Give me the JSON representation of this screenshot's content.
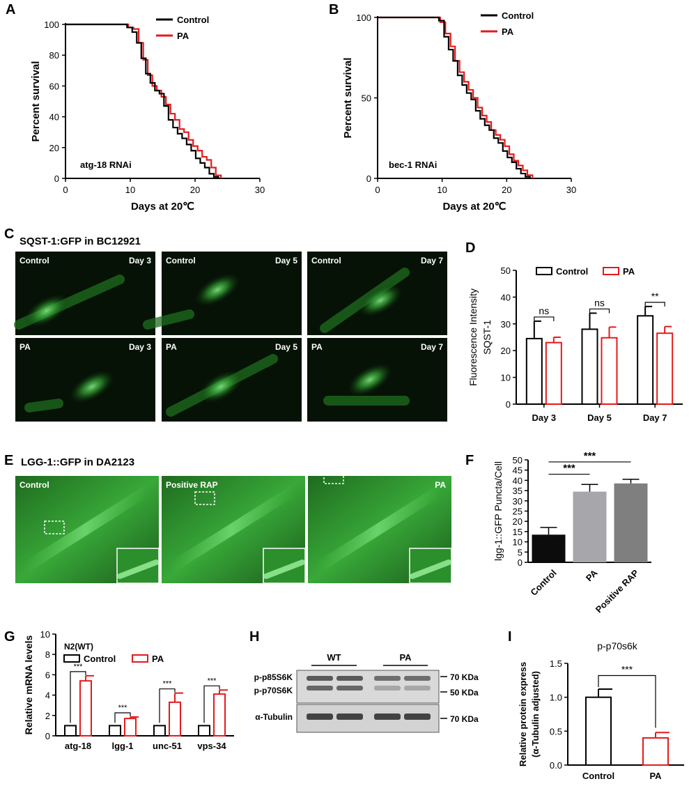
{
  "colors": {
    "control": "#000000",
    "pa": "#e41a1c",
    "panel_bg": "#0a1a0a",
    "micro_text": "#ffffff"
  },
  "panels": {
    "A": {
      "letter": "A",
      "annotation": "atg-18 RNAi"
    },
    "B": {
      "letter": "B",
      "annotation": "bec-1 RNAi"
    },
    "C": {
      "letter": "C",
      "title": "SQST-1:GFP in BC12921",
      "tiles": [
        {
          "left": "Control",
          "right": "Day 3"
        },
        {
          "left": "Control",
          "right": "Day 5"
        },
        {
          "left": "Control",
          "right": "Day 7"
        },
        {
          "left": "PA",
          "right": "Day 3"
        },
        {
          "left": "PA",
          "right": "Day 5"
        },
        {
          "left": "PA",
          "right": "Day 7"
        }
      ]
    },
    "D": {
      "letter": "D"
    },
    "E": {
      "letter": "E",
      "title": "LGG-1::GFP in DA2123",
      "tiles": [
        {
          "left": "Control",
          "right": ""
        },
        {
          "left": "Positive RAP",
          "right": ""
        },
        {
          "left": "",
          "right": "PA"
        }
      ]
    },
    "F": {
      "letter": "F"
    },
    "G": {
      "letter": "G"
    },
    "H": {
      "letter": "H",
      "groups": [
        "WT",
        "PA"
      ],
      "rows": [
        "p-p85S6K",
        "p-p70S6K",
        "α-Tubulin"
      ],
      "weights": [
        "70 KDa",
        "50 KDa",
        "70 KDa"
      ]
    },
    "I": {
      "letter": "I"
    }
  },
  "chart_data": [
    {
      "id": "A",
      "type": "line",
      "xlabel": "Days at 20℃",
      "ylabel": "Percent survival",
      "xlim": [
        0,
        30
      ],
      "ylim": [
        0,
        100
      ],
      "xticks": [
        "0",
        "10",
        "20",
        "30"
      ],
      "yticks": [
        "0",
        "20",
        "40",
        "60",
        "80",
        "100"
      ],
      "legend_position": "top-right",
      "series": [
        {
          "name": "Control",
          "x": [
            0,
            9.5,
            10.3,
            11,
            11.7,
            12.4,
            13.1,
            13.8,
            14.5,
            15.2,
            15.9,
            16.6,
            17.3,
            18,
            18.7,
            19.4,
            20.1,
            20.8,
            21.5,
            22.2,
            22.9,
            23.6
          ],
          "y": [
            100,
            98,
            95,
            88,
            78,
            68,
            62,
            57,
            55,
            47,
            38,
            33,
            29,
            26,
            22,
            18,
            13,
            10,
            7,
            3,
            1,
            0
          ]
        },
        {
          "name": "PA",
          "x": [
            0,
            9.7,
            10.5,
            11.3,
            12,
            12.7,
            13.4,
            14.1,
            14.8,
            15.5,
            16.2,
            16.9,
            17.6,
            18.3,
            19,
            19.7,
            20.4,
            21.1,
            21.8,
            22.5,
            23.2,
            24
          ],
          "y": [
            100,
            98,
            97,
            88,
            77,
            67,
            60,
            57,
            53,
            48,
            42,
            38,
            32,
            30,
            25,
            21,
            18,
            14,
            12,
            7,
            2,
            0
          ]
        }
      ]
    },
    {
      "id": "B",
      "type": "line",
      "xlabel": "Days at 20℃",
      "ylabel": "Percent survival",
      "xlim": [
        0,
        30
      ],
      "ylim": [
        0,
        100
      ],
      "xticks": [
        "0",
        "10",
        "20",
        "30"
      ],
      "yticks": [
        "0",
        "50",
        "100"
      ],
      "legend_position": "top-right",
      "series": [
        {
          "name": "Control",
          "x": [
            0,
            9.5,
            10.3,
            11,
            11.7,
            12.4,
            13.1,
            13.8,
            14.5,
            15.2,
            15.9,
            16.6,
            17.3,
            18,
            18.7,
            19.4,
            20.1,
            20.8,
            21.5,
            22.2,
            22.9,
            23.6
          ],
          "y": [
            100,
            98,
            88,
            80,
            73,
            64,
            58,
            53,
            49,
            42,
            37,
            33,
            30,
            25,
            22,
            17,
            13,
            10,
            6,
            3,
            1,
            0
          ]
        },
        {
          "name": "PA",
          "x": [
            0,
            9.7,
            10.5,
            11.3,
            12,
            12.7,
            13.4,
            14.1,
            14.8,
            15.5,
            16.2,
            16.9,
            17.6,
            18.3,
            19,
            19.7,
            20.4,
            21.1,
            21.8,
            22.5,
            23.2,
            24
          ],
          "y": [
            100,
            97,
            90,
            82,
            73,
            66,
            60,
            55,
            50,
            44,
            39,
            35,
            30,
            27,
            24,
            20,
            15,
            11,
            8,
            5,
            2,
            0
          ]
        }
      ]
    },
    {
      "id": "D",
      "type": "bar",
      "ylabel": "Fluorescence Intensity\nSQST-1",
      "categories": [
        "Day 3",
        "Day 5",
        "Day 7"
      ],
      "ylim": [
        0,
        50
      ],
      "yticks": [
        "0",
        "10",
        "20",
        "30",
        "40",
        "50"
      ],
      "legend_position": "top",
      "series": [
        {
          "name": "Control",
          "values": [
            24.5,
            28,
            33
          ],
          "errors": [
            6.5,
            6,
            3.5
          ]
        },
        {
          "name": "PA",
          "values": [
            23,
            24.8,
            26.5
          ],
          "errors": [
            2,
            4,
            2.5
          ]
        }
      ],
      "significance": [
        "ns",
        "ns",
        "**"
      ]
    },
    {
      "id": "F",
      "type": "bar",
      "ylabel": "lgg-1::GFP Puncta/Cell",
      "categories": [
        "Control",
        "PA",
        "Positive RAP"
      ],
      "values": [
        13.5,
        34.5,
        38.5
      ],
      "errors": [
        3.5,
        3.5,
        2
      ],
      "bar_colors": [
        "#0c0c0c",
        "#a7a6ab",
        "#7f7f7f"
      ],
      "ylim": [
        0,
        50
      ],
      "yticks": [
        "0",
        "5",
        "10",
        "15",
        "20",
        "25",
        "30",
        "35",
        "40",
        "45",
        "50"
      ],
      "significance": [
        {
          "from": "Control",
          "to": "PA",
          "label": "***"
        },
        {
          "from": "Control",
          "to": "Positive RAP",
          "label": "***"
        }
      ]
    },
    {
      "id": "G",
      "type": "bar",
      "title": "N2(WT)",
      "ylabel": "Relative mRNA levels",
      "categories": [
        "atg-18",
        "lgg-1",
        "unc-51",
        "vps-34"
      ],
      "ylim": [
        0,
        10
      ],
      "yticks": [
        "0",
        "2",
        "4",
        "6",
        "8",
        "10"
      ],
      "legend_position": "top-left",
      "series": [
        {
          "name": "Control",
          "values": [
            1,
            1,
            1,
            1
          ],
          "errors": [
            0,
            0,
            0,
            0
          ]
        },
        {
          "name": "PA",
          "values": [
            5.4,
            1.7,
            3.3,
            4.1
          ],
          "errors": [
            0.5,
            0.15,
            0.9,
            0.4
          ]
        }
      ],
      "significance": [
        "***",
        "***",
        "***",
        "***"
      ]
    },
    {
      "id": "I",
      "type": "bar",
      "title": "p-p70s6k",
      "ylabel": "Relative protein express\n(α-Tubulin adjusted)",
      "categories": [
        "Control",
        "PA"
      ],
      "ylim": [
        0,
        1.5
      ],
      "yticks": [
        "0.0",
        "0.5",
        "1.0",
        "1.5"
      ],
      "series_colors": [
        "#000000",
        "#e41a1c"
      ],
      "values": [
        1.0,
        0.4
      ],
      "errors": [
        0.12,
        0.08
      ],
      "significance": "***"
    }
  ]
}
